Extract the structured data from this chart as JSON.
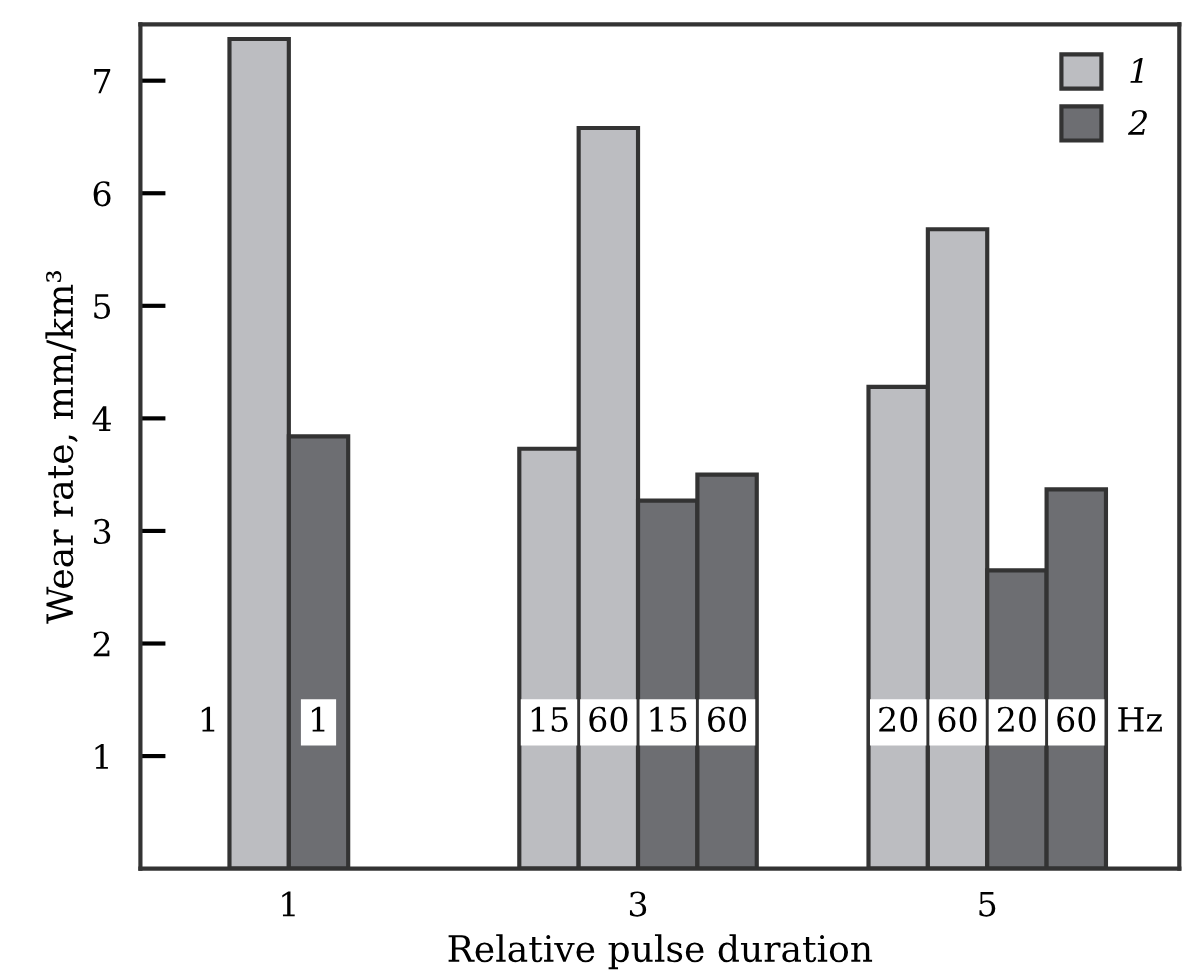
{
  "chart_data": {
    "type": "bar",
    "xlabel": "Relative pulse duration",
    "ylabel": "Wear rate, mm/km³",
    "xlim": [
      0.15,
      6.1
    ],
    "xticks": [
      1,
      3,
      5
    ],
    "ylim": [
      0,
      7.5
    ],
    "yticks": [
      1,
      2,
      3,
      4,
      5,
      6,
      7
    ],
    "series": [
      {
        "name": "1",
        "color": "#bcbdc1",
        "x": [
          0.83,
          2.49,
          2.83,
          4.49,
          4.83
        ],
        "values": [
          7.37,
          3.73,
          6.58,
          4.28,
          5.68
        ]
      },
      {
        "name": "2",
        "color": "#6d6e72",
        "x": [
          1.17,
          3.17,
          3.51,
          5.17,
          5.51
        ],
        "values": [
          3.84,
          3.27,
          3.5,
          2.65,
          3.37
        ]
      }
    ],
    "annotations": [
      "1",
      "1",
      "15",
      "60",
      "15",
      "60",
      "20",
      "60",
      "20",
      "60",
      "Hz"
    ],
    "legend": "top right",
    "grid": false
  }
}
